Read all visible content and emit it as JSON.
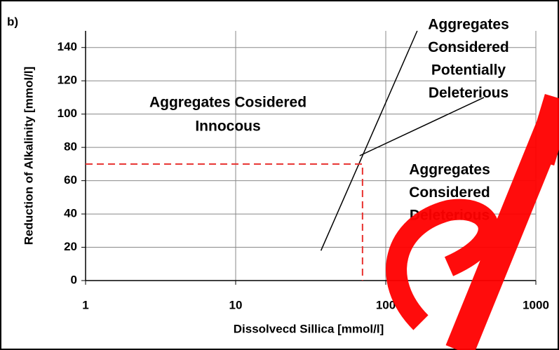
{
  "chart_data": {
    "type": "line",
    "title": "b)",
    "x_label": "Dissolvecd Sillica [mmol/l]",
    "y_label": "Reduction of Alkalinity [mmol/l]",
    "x_log": true,
    "xlim": [
      1,
      1000
    ],
    "xticks": [
      1,
      10,
      100,
      1000
    ],
    "ylim": [
      0,
      150
    ],
    "yticks": [
      0,
      20,
      40,
      60,
      80,
      100,
      120,
      140
    ],
    "grid": true,
    "series": [
      {
        "color": "#000000",
        "x": [
          37,
          162
        ],
        "values": [
          18,
          150
        ]
      },
      {
        "color": "#000000",
        "x": [
          67,
          451
        ],
        "values": [
          75,
          110
        ]
      },
      {
        "color": "#e8312f",
        "dashed": true,
        "x": [
          1,
          70,
          70
        ],
        "values": [
          70,
          70,
          0
        ]
      }
    ],
    "annotations": [
      {
        "lines": [
          "Aggregates Cosidered",
          "Innocous"
        ]
      },
      {
        "lines": [
          "Aggregates",
          "Considered",
          "Potentially",
          "Deleterious"
        ]
      },
      {
        "lines": [
          "Aggregates",
          "Considered",
          "Deleterious"
        ]
      }
    ]
  }
}
